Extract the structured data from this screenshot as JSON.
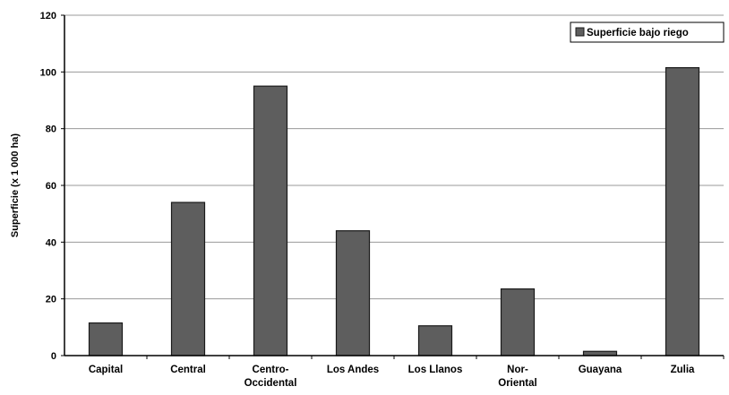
{
  "chart_data": {
    "type": "bar",
    "categories": [
      "Capital",
      "Central",
      "Centro-\nOccidental",
      "Los Andes",
      "Los Llanos",
      "Nor-\nOriental",
      "Guayana",
      "Zulia"
    ],
    "series": [
      {
        "name": "Superficie bajo riego",
        "values": [
          11.5,
          54,
          95,
          44,
          10.5,
          23.5,
          1.5,
          101.5
        ]
      }
    ],
    "title": "",
    "xlabel": "",
    "ylabel": "Superficie (x 1 000 ha)",
    "ylim": [
      0,
      120
    ],
    "yticks": [
      0,
      20,
      40,
      60,
      80,
      100,
      120
    ],
    "grid": "horizontal",
    "legend": "top-right",
    "colors": {
      "bar_fill": "#5e5e5e",
      "bar_stroke": "#1a1a1a",
      "grid": "#9a9a9a",
      "axis": "#000000"
    }
  }
}
